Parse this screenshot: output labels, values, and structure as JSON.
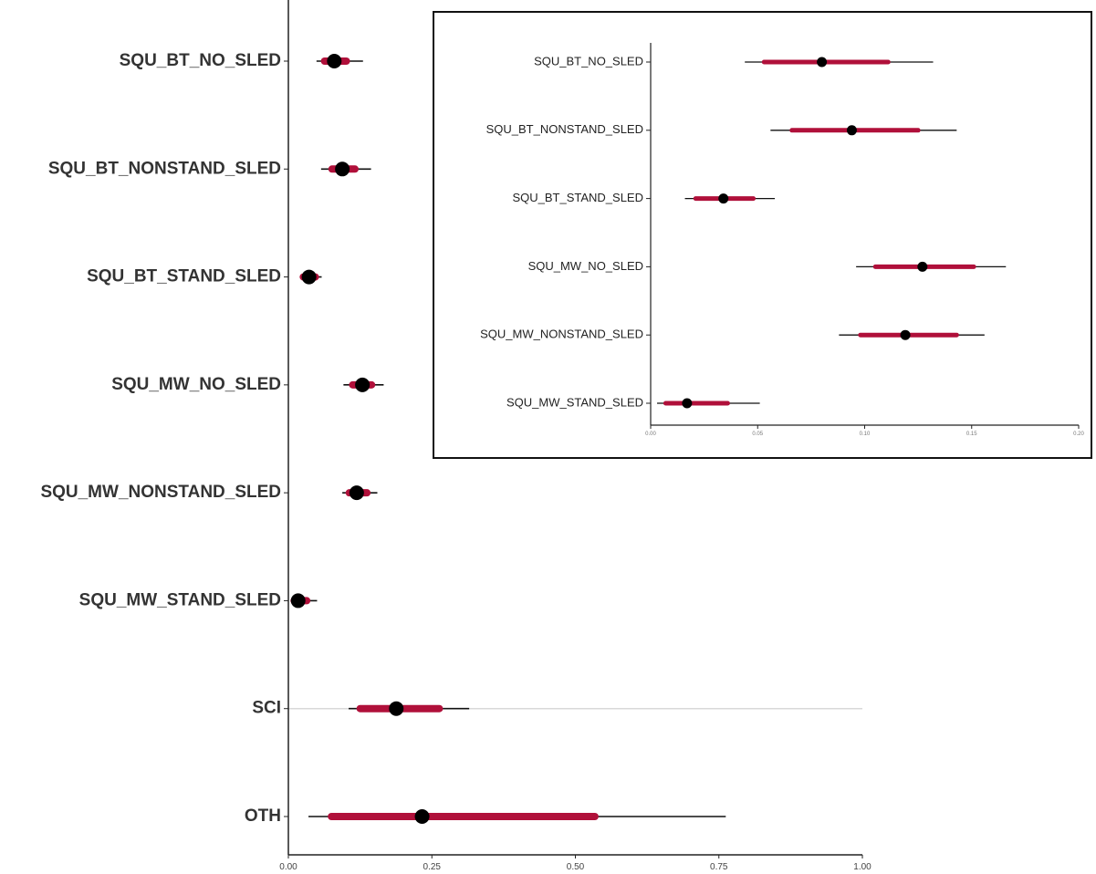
{
  "colors": {
    "interval_outer": "#111111",
    "interval_inner": "#b0103a",
    "point": "#000000",
    "axis": "#222222",
    "reference_line": "#d9d9d9"
  },
  "chart_data": [
    {
      "type": "interval-point",
      "title": "",
      "xlabel": "",
      "ylabel": "",
      "xlim": [
        0,
        1
      ],
      "x_ticks": [
        "0.00",
        "0.25",
        "0.50",
        "0.75",
        "1.00"
      ],
      "grid": false,
      "categories": [
        "SQU_BT_NO_SLED",
        "SQU_BT_NONSTAND_SLED",
        "SQU_BT_STAND_SLED",
        "SQU_MW_NO_SLED",
        "SQU_MW_NONSTAND_SLED",
        "SQU_MW_STAND_SLED",
        "SCI",
        "OTH"
      ],
      "points": [
        0.08,
        0.094,
        0.036,
        0.129,
        0.119,
        0.017,
        0.188,
        0.233
      ],
      "inner_low": [
        0.063,
        0.076,
        0.026,
        0.112,
        0.106,
        0.01,
        0.125,
        0.075
      ],
      "inner_high": [
        0.101,
        0.116,
        0.047,
        0.145,
        0.137,
        0.032,
        0.263,
        0.534
      ],
      "outer_low": [
        0.049,
        0.057,
        0.02,
        0.096,
        0.094,
        0.004,
        0.105,
        0.035
      ],
      "outer_high": [
        0.13,
        0.144,
        0.058,
        0.166,
        0.155,
        0.05,
        0.315,
        0.762
      ],
      "reference_rows": [
        "SCI"
      ]
    },
    {
      "type": "interval-point",
      "title": "",
      "xlabel": "",
      "ylabel": "",
      "xlim": [
        0,
        0.2
      ],
      "x_ticks": [
        "0.00",
        "0.05",
        "0.10",
        "0.15",
        "0.20"
      ],
      "grid": false,
      "categories": [
        "SQU_BT_NO_SLED",
        "SQU_BT_NONSTAND_SLED",
        "SQU_BT_STAND_SLED",
        "SQU_MW_NO_SLED",
        "SQU_MW_NONSTAND_SLED",
        "SQU_MW_STAND_SLED"
      ],
      "points": [
        0.08,
        0.094,
        0.034,
        0.127,
        0.119,
        0.017
      ],
      "inner_low": [
        0.053,
        0.066,
        0.021,
        0.105,
        0.098,
        0.007
      ],
      "inner_high": [
        0.111,
        0.125,
        0.048,
        0.151,
        0.143,
        0.036
      ],
      "outer_low": [
        0.044,
        0.056,
        0.016,
        0.096,
        0.088,
        0.003
      ],
      "outer_high": [
        0.132,
        0.143,
        0.058,
        0.166,
        0.156,
        0.051
      ],
      "reference_rows": []
    }
  ]
}
